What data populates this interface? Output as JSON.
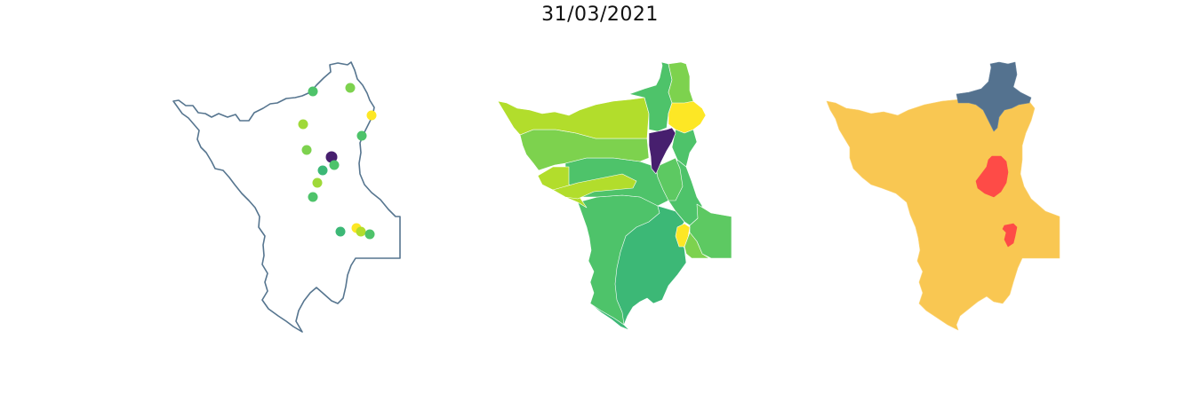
{
  "figure": {
    "title": "31/03/2021"
  },
  "colors": {
    "outline": "#56758f",
    "viridis_dark": "#471f6e",
    "viridis_teal": "#3cb876",
    "viridis_green": "#4ec36a",
    "viridis_lightgreen": "#7dd24e",
    "viridis_yellowgreen": "#b2dd2c",
    "viridis_yellow": "#fde725",
    "risk_yellow": "#f9c752",
    "risk_red": "#fe4b47",
    "risk_bluegray": "#54728f"
  },
  "panels": [
    {
      "id": "points",
      "description_type": "outline-with-points"
    },
    {
      "id": "choropleth",
      "description_type": "viridis-choropleth"
    },
    {
      "id": "classification",
      "description_type": "categorical-choropleth"
    }
  ]
}
